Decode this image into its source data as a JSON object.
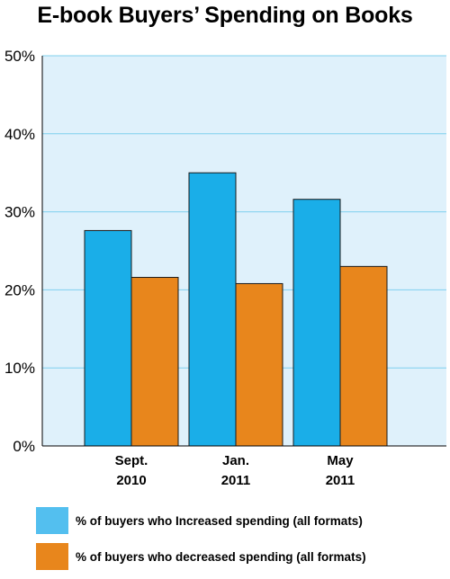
{
  "chart_data": {
    "type": "bar",
    "title": "E-book Buyers’ Spending on Books",
    "categories": [
      {
        "line1": "Sept.",
        "line2": "2010"
      },
      {
        "line1": "Jan.",
        "line2": "2011"
      },
      {
        "line1": "May",
        "line2": "2011"
      }
    ],
    "series": [
      {
        "name": "% of buyers who Increased spending (all formats)",
        "color": "#1aaee8",
        "values": [
          27.6,
          35.0,
          31.6
        ]
      },
      {
        "name": "% of buyers who decreased spending (all formats)",
        "color": "#e8861c",
        "values": [
          21.6,
          20.8,
          23.0
        ]
      }
    ],
    "ylim": [
      0,
      50
    ],
    "yticks": [
      "0%",
      "10%",
      "20%",
      "30%",
      "40%",
      "50%"
    ],
    "grid": true,
    "legend_position": "bottom",
    "colors": {
      "plot_background": "#dff1fb",
      "gridline": "#7fd0ee",
      "legend_swatch_1": "#53bfef",
      "legend_swatch_2": "#e8861c"
    }
  }
}
